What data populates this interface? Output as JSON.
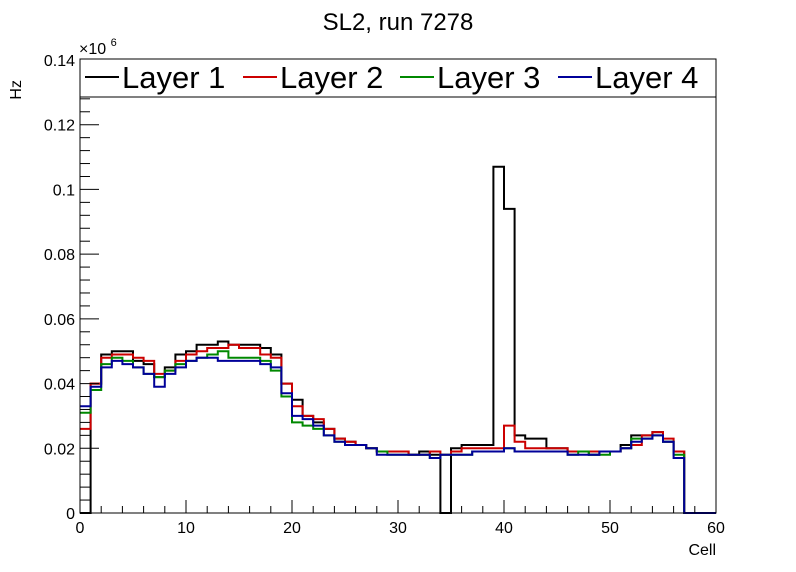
{
  "chart_data": {
    "type": "line",
    "title": "SL2, run 7278",
    "xlabel": "Cell",
    "ylabel": "Hz",
    "y_multiplier": "×10",
    "y_multiplier_exponent": "6",
    "xlim": [
      0,
      60
    ],
    "ylim": [
      0,
      0.14
    ],
    "x_ticks": [
      0,
      10,
      20,
      30,
      40,
      50,
      60
    ],
    "x_tick_labels": [
      "0",
      "10",
      "20",
      "30",
      "40",
      "50",
      "60"
    ],
    "y_ticks": [
      0,
      0.02,
      0.04,
      0.06,
      0.08,
      0.1,
      0.12,
      0.14
    ],
    "y_tick_labels": [
      "0",
      "0.02",
      "0.04",
      "0.06",
      "0.08",
      "0.1",
      "0.12",
      "0.14"
    ],
    "grid": false,
    "legend_position": "top",
    "bin_edges_start": 0,
    "bin_width": 1,
    "series": [
      {
        "name": "Layer 1",
        "color": "#000000",
        "values": [
          0,
          0.04,
          0.049,
          0.05,
          0.05,
          0.047,
          0.046,
          0.042,
          0.045,
          0.049,
          0.05,
          0.052,
          0.052,
          0.053,
          0.052,
          0.052,
          0.052,
          0.051,
          0.049,
          0.04,
          0.035,
          0.03,
          0.028,
          0.026,
          0.023,
          0.022,
          0.021,
          0.02,
          0.019,
          0.019,
          0.019,
          0.018,
          0.019,
          0.018,
          0.0,
          0.02,
          0.021,
          0.021,
          0.021,
          0.107,
          0.094,
          0.024,
          0.023,
          0.023,
          0.02,
          0.02,
          0.019,
          0.019,
          0.018,
          0.019,
          0.019,
          0.021,
          0.024,
          0.024,
          0.025,
          0.022,
          0.019,
          0,
          0,
          0
        ]
      },
      {
        "name": "Layer 2",
        "color": "#cc0000",
        "values": [
          0.026,
          0.04,
          0.048,
          0.049,
          0.049,
          0.048,
          0.047,
          0.043,
          0.044,
          0.047,
          0.049,
          0.05,
          0.051,
          0.051,
          0.052,
          0.051,
          0.051,
          0.049,
          0.048,
          0.04,
          0.033,
          0.03,
          0.029,
          0.026,
          0.023,
          0.022,
          0.021,
          0.02,
          0.019,
          0.019,
          0.019,
          0.018,
          0.018,
          0.019,
          0.018,
          0.019,
          0.02,
          0.02,
          0.02,
          0.02,
          0.027,
          0.022,
          0.02,
          0.02,
          0.02,
          0.02,
          0.019,
          0.019,
          0.019,
          0.019,
          0.019,
          0.02,
          0.021,
          0.024,
          0.025,
          0.023,
          0.019,
          0,
          0,
          0
        ]
      },
      {
        "name": "Layer 3",
        "color": "#008800",
        "values": [
          0.031,
          0.038,
          0.046,
          0.048,
          0.047,
          0.045,
          0.043,
          0.042,
          0.044,
          0.046,
          0.047,
          0.048,
          0.049,
          0.05,
          0.048,
          0.048,
          0.048,
          0.047,
          0.044,
          0.036,
          0.028,
          0.027,
          0.026,
          0.024,
          0.022,
          0.021,
          0.021,
          0.02,
          0.019,
          0.018,
          0.018,
          0.018,
          0.018,
          0.017,
          0.018,
          0.018,
          0.018,
          0.019,
          0.019,
          0.019,
          0.02,
          0.019,
          0.019,
          0.019,
          0.019,
          0.019,
          0.018,
          0.019,
          0.018,
          0.018,
          0.019,
          0.02,
          0.023,
          0.023,
          0.024,
          0.022,
          0.018,
          0,
          0,
          0
        ]
      },
      {
        "name": "Layer 4",
        "color": "#000099",
        "values": [
          0.033,
          0.039,
          0.045,
          0.047,
          0.046,
          0.045,
          0.043,
          0.039,
          0.043,
          0.045,
          0.047,
          0.048,
          0.048,
          0.047,
          0.047,
          0.047,
          0.047,
          0.046,
          0.045,
          0.037,
          0.03,
          0.029,
          0.027,
          0.024,
          0.022,
          0.021,
          0.021,
          0.02,
          0.018,
          0.018,
          0.018,
          0.018,
          0.018,
          0.017,
          0.018,
          0.018,
          0.018,
          0.019,
          0.019,
          0.019,
          0.02,
          0.019,
          0.019,
          0.019,
          0.019,
          0.019,
          0.018,
          0.018,
          0.018,
          0.019,
          0.019,
          0.02,
          0.022,
          0.023,
          0.024,
          0.022,
          0.017,
          0,
          0,
          0
        ]
      }
    ]
  }
}
